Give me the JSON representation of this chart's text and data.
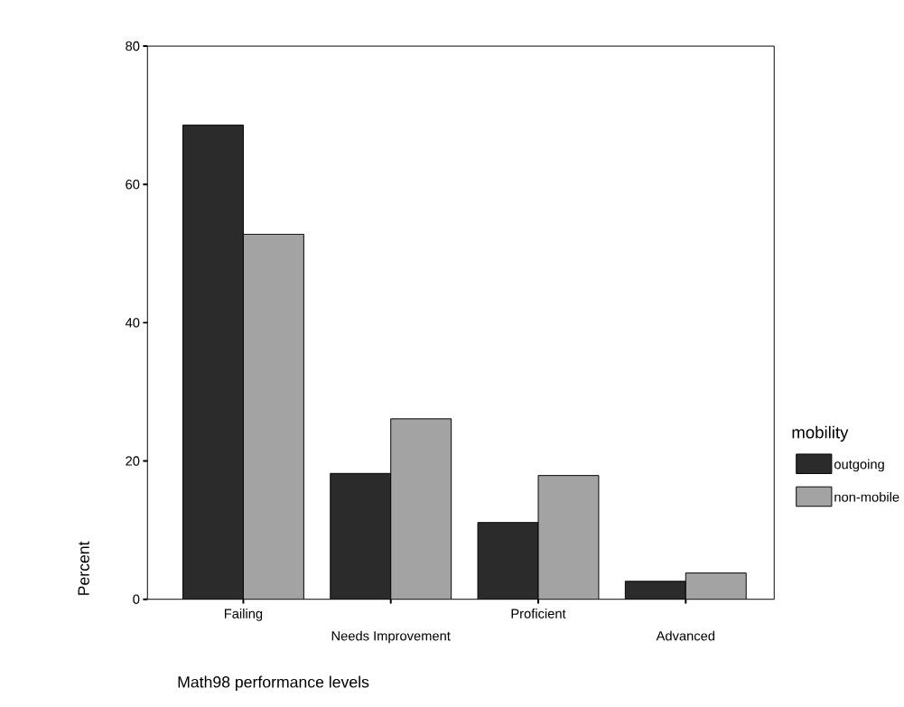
{
  "chart_data": {
    "type": "bar",
    "categories": [
      "Failing",
      "Needs Improvement",
      "Proficient",
      "Advanced"
    ],
    "series": [
      {
        "name": "outgoing",
        "color": "#2b2b2b",
        "values": [
          68.6,
          18.2,
          11.1,
          2.6
        ]
      },
      {
        "name": "non-mobile",
        "color": "#a3a3a3",
        "values": [
          52.8,
          26.1,
          17.9,
          3.8
        ]
      }
    ],
    "xlabel": "Math98 performance levels",
    "ylabel": "Percent",
    "legend_title": "mobility",
    "legend": "right",
    "ylim": [
      0,
      80
    ],
    "yticks": [
      0,
      20,
      40,
      60,
      80
    ]
  }
}
